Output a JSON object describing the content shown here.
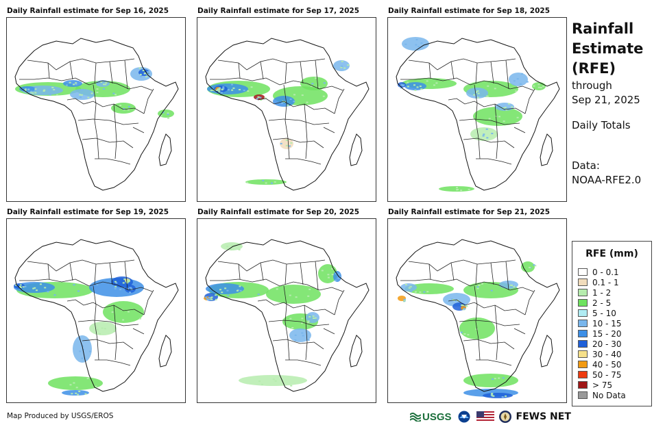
{
  "panels": [
    {
      "title": "Daily Rainfall estimate for Sep 16, 2025"
    },
    {
      "title": "Daily Rainfall estimate for Sep 17, 2025"
    },
    {
      "title": "Daily Rainfall estimate for Sep 18, 2025"
    },
    {
      "title": "Daily Rainfall estimate for Sep 19, 2025"
    },
    {
      "title": "Daily Rainfall estimate for Sep 20, 2025"
    },
    {
      "title": "Daily Rainfall estimate for Sep 21, 2025"
    }
  ],
  "side": {
    "title_line1": "Rainfall",
    "title_line2": "Estimate",
    "title_line3": "(RFE)",
    "through": "through",
    "date": "Sep 21, 2025",
    "daily": "Daily Totals",
    "data_label": "Data:",
    "data_source": "NOAA-RFE2.0"
  },
  "legend": {
    "title": "RFE (mm)",
    "items": [
      {
        "label": "0 - 0.1",
        "color": "#ffffff"
      },
      {
        "label": "0.1 - 1",
        "color": "#f1dcbc"
      },
      {
        "label": "1 - 2",
        "color": "#b6ecae"
      },
      {
        "label": "2 - 5",
        "color": "#6fe25f"
      },
      {
        "label": "5 - 10",
        "color": "#b0ecf3"
      },
      {
        "label": "10 - 15",
        "color": "#79b6ec"
      },
      {
        "label": "15 - 20",
        "color": "#3d8fe6"
      },
      {
        "label": "20 - 30",
        "color": "#1f60d8"
      },
      {
        "label": "30 - 40",
        "color": "#f6e08a"
      },
      {
        "label": "40 - 50",
        "color": "#f29a12"
      },
      {
        "label": "50 - 75",
        "color": "#ee3b10"
      },
      {
        "label": "> 75",
        "color": "#a01616"
      },
      {
        "label": "No Data",
        "color": "#999999"
      }
    ]
  },
  "footer": {
    "credit": "Map Produced by USGS/EROS",
    "usgs": "USGS",
    "fews": "FEWS NET"
  }
}
